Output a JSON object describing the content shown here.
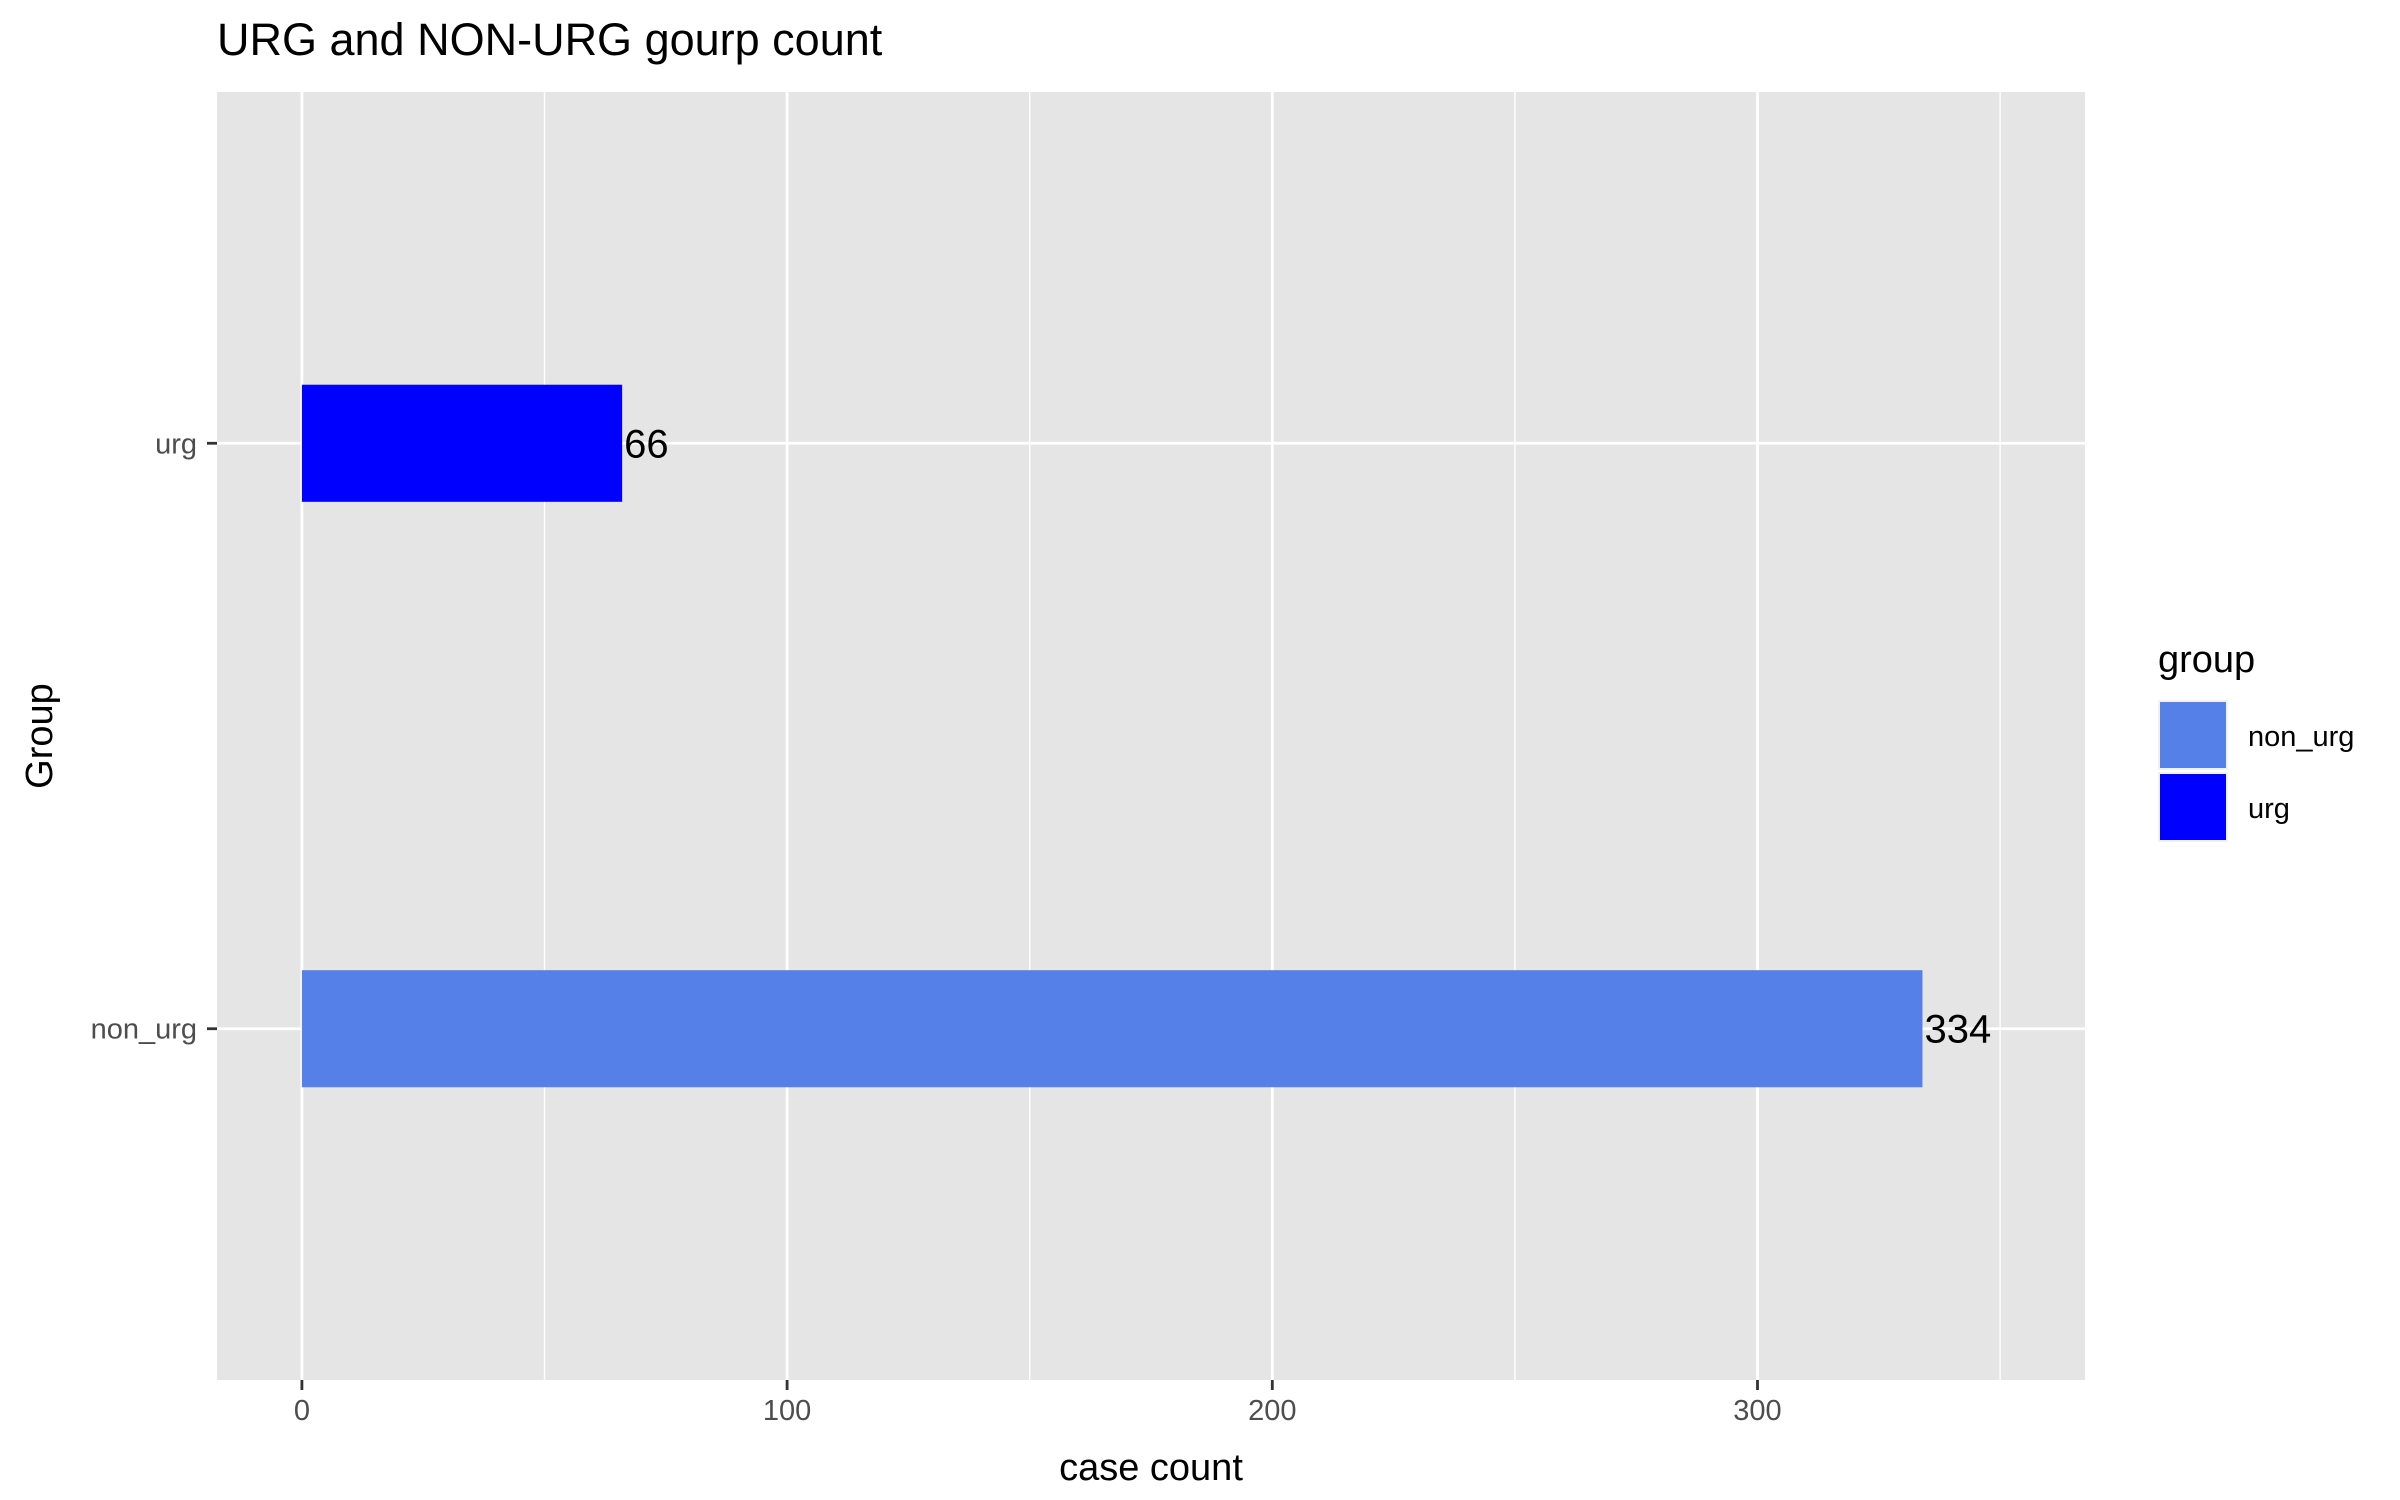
{
  "chart_data": {
    "type": "bar",
    "orientation": "horizontal",
    "title": "URG and NON-URG gourp count",
    "xlabel": "case count",
    "ylabel": "Group",
    "categories": [
      "non_urg",
      "urg"
    ],
    "values": [
      334,
      66
    ],
    "data_labels": [
      "334",
      "66"
    ],
    "bar_colors": [
      "#5580E8",
      "#0000FF"
    ],
    "xlim": [
      -17.5,
      367.5
    ],
    "x_ticks": [
      0,
      100,
      200,
      300
    ],
    "x_tick_labels": [
      "0",
      "100",
      "200",
      "300"
    ],
    "grid": true,
    "panel_background": "#E5E5E5",
    "legend": {
      "title": "group",
      "position": "right",
      "entries": [
        {
          "label": "non_urg",
          "color": "#5580E8"
        },
        {
          "label": "urg",
          "color": "#0000FF"
        }
      ]
    }
  }
}
